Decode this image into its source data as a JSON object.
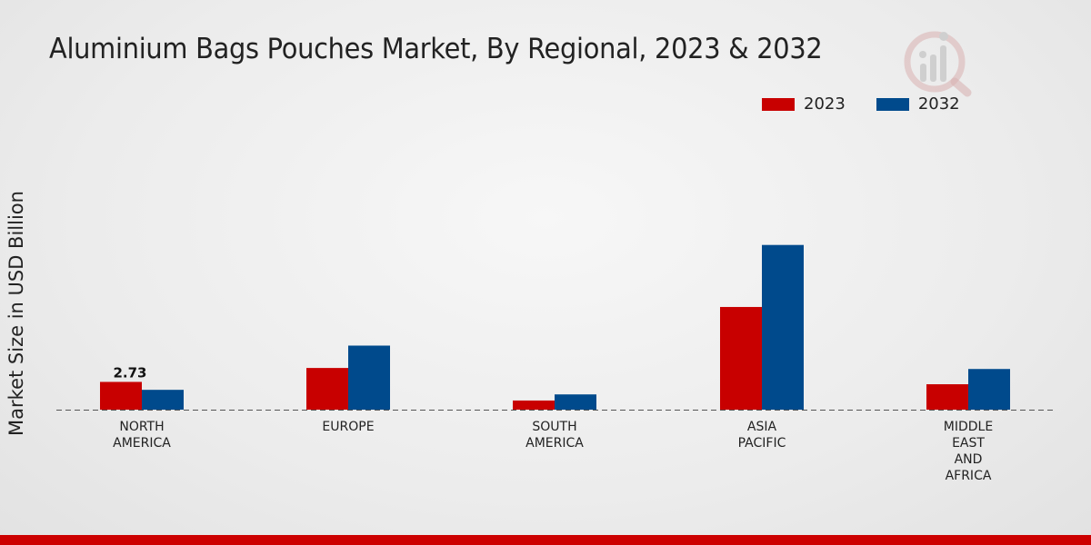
{
  "colors": {
    "series_2023": "#c80000",
    "series_2032": "#004a8c",
    "footer": "#cc0000"
  },
  "logo": {
    "icon": "analytics-logo-icon"
  },
  "chart_data": {
    "type": "bar",
    "title": "Aluminium Bags Pouches Market, By Regional, 2023 & 2032",
    "xlabel": "",
    "ylabel": "Market Size in USD Billion",
    "ylim": [
      0,
      26
    ],
    "grid": false,
    "legend_position": "top-right",
    "categories": [
      [
        "NORTH",
        "AMERICA"
      ],
      [
        "EUROPE"
      ],
      [
        "SOUTH",
        "AMERICA"
      ],
      [
        "ASIA",
        "PACIFIC"
      ],
      [
        "MIDDLE",
        "EAST",
        "AND",
        "AFRICA"
      ]
    ],
    "series": [
      {
        "name": "2023",
        "color": "#c80000",
        "values": [
          2.73,
          4.1,
          0.9,
          10.1,
          2.5
        ]
      },
      {
        "name": "2032",
        "color": "#004a8c",
        "values": [
          1.95,
          6.3,
          1.5,
          16.2,
          4.0
        ]
      }
    ],
    "annotations": [
      {
        "series": 0,
        "category": 0,
        "text": "2.73"
      }
    ]
  }
}
